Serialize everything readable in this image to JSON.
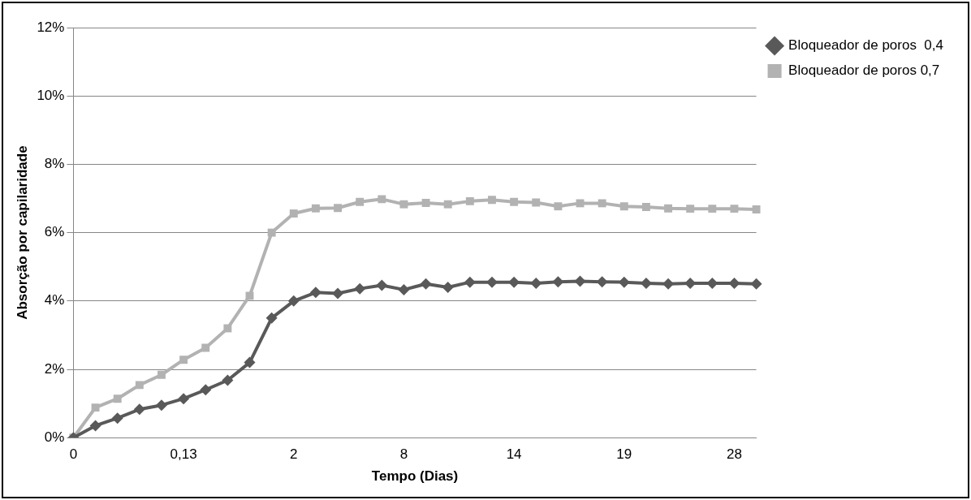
{
  "chart_data": {
    "type": "line",
    "xlabel": "Tempo (Dias)",
    "ylabel": "Absorção por capilaridade",
    "categories": [
      "0",
      null,
      null,
      null,
      null,
      "0,13",
      null,
      null,
      null,
      null,
      "2",
      null,
      null,
      null,
      null,
      "8",
      null,
      null,
      null,
      null,
      "14",
      null,
      null,
      null,
      null,
      "19",
      null,
      null,
      null,
      null,
      "28",
      null
    ],
    "series": [
      {
        "name": "Bloqueador de poros  0,4",
        "color": "#595959",
        "marker": "diamond",
        "values": [
          0,
          0.35,
          0.57,
          0.83,
          0.95,
          1.14,
          1.4,
          1.68,
          2.2,
          3.5,
          4.0,
          4.25,
          4.22,
          4.36,
          4.46,
          4.33,
          4.5,
          4.4,
          4.55,
          4.55,
          4.55,
          4.52,
          4.56,
          4.58,
          4.56,
          4.55,
          4.52,
          4.5,
          4.52,
          4.52,
          4.52,
          4.5
        ]
      },
      {
        "name": "Bloqueador de poros 0,7",
        "color": "#b2b2b2",
        "marker": "square",
        "values": [
          0,
          0.88,
          1.14,
          1.54,
          1.84,
          2.28,
          2.63,
          3.2,
          4.15,
          6.0,
          6.56,
          6.71,
          6.72,
          6.9,
          6.98,
          6.83,
          6.87,
          6.83,
          6.92,
          6.96,
          6.9,
          6.88,
          6.77,
          6.86,
          6.86,
          6.77,
          6.75,
          6.71,
          6.7,
          6.7,
          6.7,
          6.68
        ]
      }
    ],
    "ylim": [
      0,
      12
    ],
    "yticks": [
      {
        "value": 0,
        "label": "0%"
      },
      {
        "value": 2,
        "label": "2%"
      },
      {
        "value": 4,
        "label": "4%"
      },
      {
        "value": 6,
        "label": "6%"
      },
      {
        "value": 8,
        "label": "8%"
      },
      {
        "value": 10,
        "label": "10%"
      },
      {
        "value": 12,
        "label": "12%"
      }
    ],
    "grid": "y",
    "legend": "right",
    "line_style": "solid"
  }
}
